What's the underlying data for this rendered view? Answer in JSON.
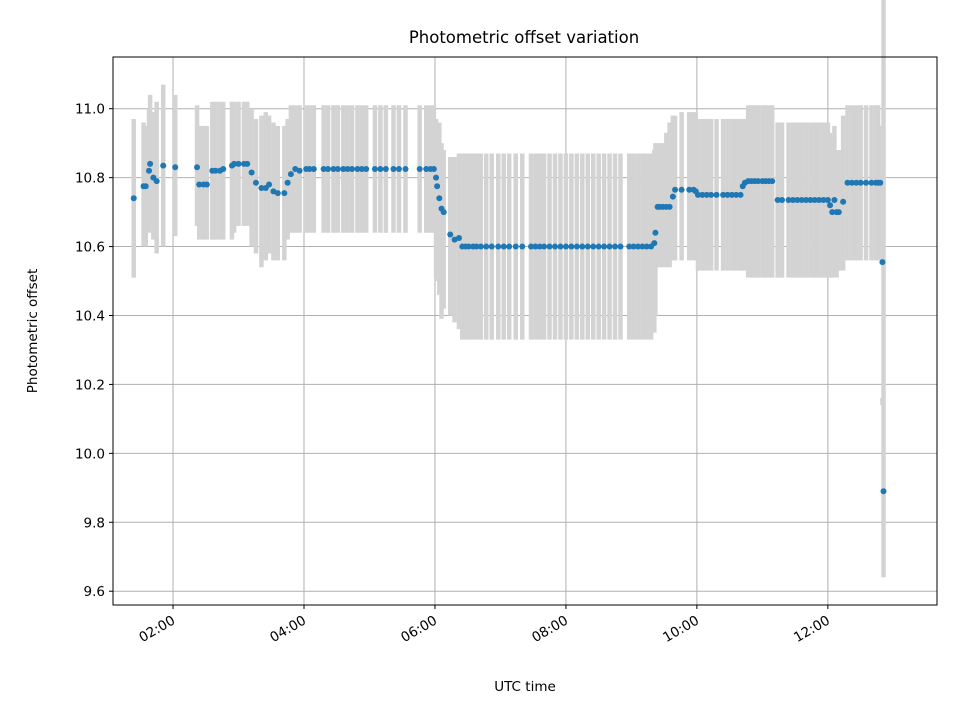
{
  "chart_data": {
    "type": "scatter",
    "title": "Photometric offset variation",
    "xlabel": "UTC time",
    "ylabel": "Photometric offset",
    "x_ticks": [
      "02:00",
      "04:00",
      "06:00",
      "08:00",
      "10:00",
      "12:00"
    ],
    "y_ticks": [
      "9.6",
      "9.8",
      "10.0",
      "10.2",
      "10.4",
      "10.6",
      "10.8",
      "11.0"
    ],
    "xlim": [
      "01:05",
      "13:40"
    ],
    "ylim": [
      9.56,
      11.15
    ],
    "grid": true,
    "colors": {
      "points": "#1f77b4",
      "error_bars": "#d3d3d3"
    },
    "series": [
      {
        "x": [
          "01:24",
          "01:33",
          "01:35",
          "01:38",
          "01:39",
          "01:42",
          "01:45",
          "01:51",
          "02:02",
          "02:22",
          "02:24",
          "02:28",
          "02:31",
          "02:36",
          "02:39",
          "02:43",
          "02:46",
          "02:54",
          "02:56",
          "03:00",
          "03:05",
          "03:08",
          "03:12",
          "03:16",
          "03:21",
          "03:25",
          "03:28",
          "03:32",
          "03:36",
          "03:42",
          "03:45",
          "03:48",
          "03:52",
          "03:56",
          "04:02",
          "04:05",
          "04:09",
          "04:18",
          "04:22",
          "04:27",
          "04:31",
          "04:36",
          "04:40",
          "04:44",
          "04:49",
          "04:53",
          "04:57",
          "05:05",
          "05:10",
          "05:15",
          "05:22",
          "05:27",
          "05:33",
          "05:46",
          "05:52",
          "05:56",
          "05:59",
          "06:01",
          "06:02",
          "06:04",
          "06:06",
          "06:08",
          "06:14",
          "06:18",
          "06:22",
          "06:25",
          "06:28",
          "06:31",
          "06:35",
          "06:38",
          "06:42",
          "06:47",
          "06:52",
          "06:58",
          "07:03",
          "07:08",
          "07:14",
          "07:20",
          "07:28",
          "07:32",
          "07:36",
          "07:40",
          "07:45",
          "07:50",
          "07:55",
          "08:00",
          "08:05",
          "08:10",
          "08:15",
          "08:20",
          "08:25",
          "08:30",
          "08:35",
          "08:40",
          "08:45",
          "08:50",
          "08:58",
          "09:02",
          "09:06",
          "09:10",
          "09:14",
          "09:18",
          "09:21",
          "09:22",
          "09:24",
          "09:26",
          "09:29",
          "09:32",
          "09:35",
          "09:38",
          "09:40",
          "09:46",
          "09:53",
          "09:57",
          "09:59",
          "10:01",
          "10:05",
          "10:09",
          "10:13",
          "10:18",
          "10:24",
          "10:28",
          "10:32",
          "10:36",
          "10:40",
          "10:42",
          "10:44",
          "10:47",
          "10:50",
          "10:53",
          "10:56",
          "11:00",
          "11:03",
          "11:06",
          "11:09",
          "11:14",
          "11:18",
          "11:24",
          "11:28",
          "11:32",
          "11:36",
          "11:40",
          "11:44",
          "11:48",
          "11:52",
          "11:56",
          "12:00",
          "12:02",
          "12:04",
          "12:06",
          "12:08",
          "12:10",
          "12:14",
          "12:18",
          "12:22",
          "12:26",
          "12:30",
          "12:35",
          "12:40",
          "12:44",
          "12:46",
          "12:48",
          "12:50",
          "12:51"
        ],
        "y": [
          10.74,
          10.775,
          10.775,
          10.82,
          10.84,
          10.8,
          10.79,
          10.835,
          10.83,
          10.83,
          10.78,
          10.78,
          10.78,
          10.82,
          10.82,
          10.82,
          10.825,
          10.835,
          10.84,
          10.84,
          10.84,
          10.84,
          10.815,
          10.785,
          10.77,
          10.77,
          10.78,
          10.76,
          10.755,
          10.755,
          10.785,
          10.81,
          10.825,
          10.82,
          10.825,
          10.825,
          10.825,
          10.825,
          10.825,
          10.825,
          10.825,
          10.825,
          10.825,
          10.825,
          10.825,
          10.825,
          10.825,
          10.825,
          10.825,
          10.825,
          10.825,
          10.825,
          10.825,
          10.825,
          10.825,
          10.825,
          10.825,
          10.8,
          10.775,
          10.74,
          10.71,
          10.7,
          10.635,
          10.62,
          10.625,
          10.6,
          10.6,
          10.6,
          10.6,
          10.6,
          10.6,
          10.6,
          10.6,
          10.6,
          10.6,
          10.6,
          10.6,
          10.6,
          10.6,
          10.6,
          10.6,
          10.6,
          10.6,
          10.6,
          10.6,
          10.6,
          10.6,
          10.6,
          10.6,
          10.6,
          10.6,
          10.6,
          10.6,
          10.6,
          10.6,
          10.6,
          10.6,
          10.6,
          10.6,
          10.6,
          10.6,
          10.6,
          10.61,
          10.64,
          10.715,
          10.715,
          10.715,
          10.715,
          10.715,
          10.745,
          10.765,
          10.765,
          10.765,
          10.765,
          10.76,
          10.75,
          10.75,
          10.75,
          10.75,
          10.75,
          10.75,
          10.75,
          10.75,
          10.75,
          10.75,
          10.775,
          10.785,
          10.79,
          10.79,
          10.79,
          10.79,
          10.79,
          10.79,
          10.79,
          10.79,
          10.735,
          10.735,
          10.735,
          10.735,
          10.735,
          10.735,
          10.735,
          10.735,
          10.735,
          10.735,
          10.735,
          10.735,
          10.72,
          10.7,
          10.735,
          10.7,
          10.7,
          10.73,
          10.785,
          10.785,
          10.785,
          10.785,
          10.785,
          10.785,
          10.785,
          10.785,
          10.785,
          10.555,
          9.89
        ],
        "yerr_low": [
          10.51,
          10.6,
          10.6,
          10.64,
          10.66,
          10.62,
          10.58,
          10.6,
          10.63,
          10.66,
          10.62,
          10.62,
          10.62,
          10.62,
          10.62,
          10.62,
          10.62,
          10.62,
          10.64,
          10.66,
          10.66,
          10.66,
          10.6,
          10.58,
          10.54,
          10.56,
          10.58,
          10.56,
          10.56,
          10.56,
          10.62,
          10.64,
          10.64,
          10.64,
          10.64,
          10.64,
          10.64,
          10.64,
          10.64,
          10.64,
          10.64,
          10.64,
          10.64,
          10.64,
          10.64,
          10.64,
          10.64,
          10.64,
          10.64,
          10.64,
          10.64,
          10.64,
          10.64,
          10.64,
          10.64,
          10.64,
          10.64,
          10.51,
          10.5,
          10.46,
          10.39,
          10.42,
          10.4,
          10.38,
          10.36,
          10.33,
          10.33,
          10.33,
          10.33,
          10.33,
          10.33,
          10.33,
          10.33,
          10.33,
          10.33,
          10.33,
          10.33,
          10.33,
          10.33,
          10.33,
          10.33,
          10.33,
          10.33,
          10.33,
          10.33,
          10.33,
          10.33,
          10.33,
          10.33,
          10.33,
          10.33,
          10.33,
          10.33,
          10.33,
          10.33,
          10.33,
          10.33,
          10.33,
          10.33,
          10.33,
          10.33,
          10.33,
          10.35,
          10.4,
          10.54,
          10.54,
          10.54,
          10.54,
          10.54,
          10.56,
          10.56,
          10.56,
          10.56,
          10.56,
          10.56,
          10.53,
          10.53,
          10.53,
          10.53,
          10.53,
          10.53,
          10.53,
          10.53,
          10.53,
          10.53,
          10.53,
          10.53,
          10.51,
          10.51,
          10.51,
          10.51,
          10.51,
          10.51,
          10.51,
          10.51,
          10.51,
          10.51,
          10.51,
          10.51,
          10.51,
          10.51,
          10.51,
          10.51,
          10.51,
          10.51,
          10.51,
          10.51,
          10.51,
          10.51,
          10.53,
          10.51,
          10.53,
          10.53,
          10.56,
          10.56,
          10.56,
          10.56,
          10.56,
          10.56,
          10.56,
          10.56,
          10.56,
          10.16,
          9.64
        ],
        "yerr_high": [
          10.97,
          10.96,
          10.95,
          11.0,
          11.04,
          10.99,
          11.02,
          11.07,
          11.04,
          11.01,
          10.95,
          10.95,
          10.95,
          11.02,
          11.02,
          11.02,
          11.02,
          11.02,
          11.02,
          11.02,
          11.02,
          11.02,
          11.0,
          10.97,
          10.98,
          10.99,
          10.98,
          10.96,
          10.95,
          10.95,
          10.97,
          11.01,
          11.01,
          11.01,
          11.01,
          11.01,
          11.01,
          11.01,
          11.01,
          11.01,
          11.01,
          11.01,
          11.01,
          11.01,
          11.01,
          11.01,
          11.01,
          11.01,
          11.01,
          11.01,
          11.01,
          11.01,
          11.01,
          11.01,
          11.01,
          11.01,
          11.01,
          10.97,
          10.96,
          10.96,
          10.9,
          10.88,
          10.86,
          10.86,
          10.87,
          10.87,
          10.87,
          10.87,
          10.87,
          10.87,
          10.87,
          10.87,
          10.87,
          10.87,
          10.87,
          10.87,
          10.87,
          10.87,
          10.87,
          10.87,
          10.87,
          10.87,
          10.87,
          10.87,
          10.87,
          10.87,
          10.87,
          10.87,
          10.87,
          10.87,
          10.87,
          10.87,
          10.87,
          10.87,
          10.87,
          10.87,
          10.87,
          10.87,
          10.87,
          10.87,
          10.87,
          10.87,
          10.88,
          10.9,
          10.9,
          10.9,
          10.9,
          10.93,
          10.96,
          10.98,
          10.98,
          10.99,
          10.99,
          10.99,
          10.99,
          10.97,
          10.97,
          10.97,
          10.97,
          10.97,
          10.97,
          10.97,
          10.97,
          10.97,
          10.97,
          10.97,
          10.97,
          11.01,
          11.01,
          11.01,
          11.01,
          11.01,
          11.01,
          11.01,
          11.01,
          10.96,
          10.96,
          10.96,
          10.96,
          10.96,
          10.96,
          10.96,
          10.96,
          10.96,
          10.96,
          10.96,
          10.96,
          10.93,
          10.9,
          10.95,
          10.87,
          10.88,
          10.98,
          11.01,
          11.01,
          11.01,
          11.01,
          11.01,
          11.01,
          11.01,
          11.01,
          10.95,
          10.14
        ]
      }
    ]
  }
}
